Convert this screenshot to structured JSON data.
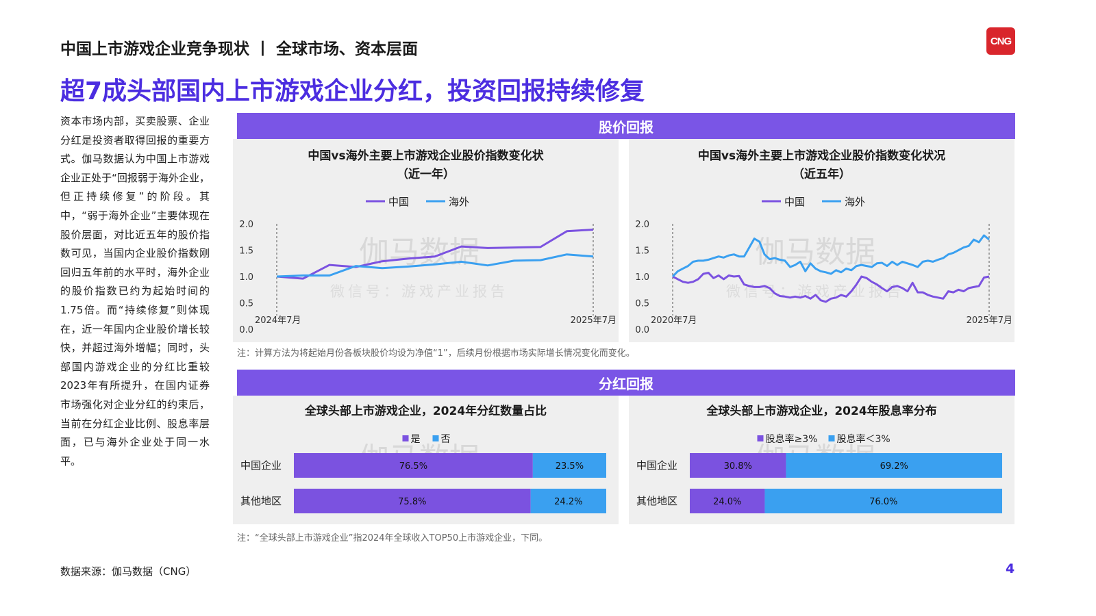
{
  "header": {
    "title": "中国上市游戏企业竞争现状 丨 全球市场、资本层面",
    "logo_text": "CNG"
  },
  "main_title": "超7成头部国内上市游戏企业分红，投资回报持续修复",
  "left_text": "资本市场内部，买卖股票、企业分红是投资者取得回报的重要方式。伽马数据认为中国上市游戏企业正处于“回报弱于海外企业，但正持续修复”的阶段。其中，“弱于海外企业”主要体现在股价层面，对比近五年的股价指数可见，当国内企业股价指数刚回归五年前的水平时，海外企业的股价指数已约为起始时间的1.75倍。而“持续修复”则体现在，近一年国内企业股价增长较快，并超过海外增幅；同时，头部国内游戏企业的分红比重较2023年有所提升，在国内证券市场强化对企业分红的约束后，当前在分红企业比例、股息率层面，已与海外企业处于同一水平。",
  "section1": {
    "label": "股价回报"
  },
  "section2": {
    "label": "分红回报"
  },
  "note1": "注：计算方法为将起始月份各板块股价均设为净值“1”，后续月份根据市场实际增长情况变化而变化。",
  "note2": "注：“全球头部上市游戏企业”指2024年全球收入TOP50上市游戏企业，下同。",
  "watermark": {
    "main": "伽马数据",
    "sub": "微信号：游戏产业报告"
  },
  "footer": {
    "source": "数据来源：伽马数据（CNG）",
    "page": "4"
  },
  "colors": {
    "china": "#7b52e0",
    "overseas": "#3aa0f0",
    "accent": "#4b2de0",
    "section_bar": "#7a55e6"
  },
  "chart_data": [
    {
      "type": "line",
      "title_line1": "中国vs海外主要上市游戏企业股价指数变化状",
      "title_line2": "（近一年）",
      "x_start_label": "2024年7月",
      "x_end_label": "2025年7月",
      "ylim": [
        0,
        2.0
      ],
      "yticks": [
        "0.0",
        "0.5",
        "1.0",
        "1.5",
        "2.0"
      ],
      "series": [
        {
          "name": "中国",
          "color": "#7b52e0",
          "values": [
            1.0,
            0.96,
            1.22,
            1.18,
            1.29,
            1.34,
            1.38,
            1.57,
            1.54,
            1.55,
            1.56,
            1.86,
            1.89
          ]
        },
        {
          "name": "海外",
          "color": "#3aa0f0",
          "values": [
            1.0,
            1.02,
            1.02,
            1.2,
            1.16,
            1.19,
            1.23,
            1.28,
            1.21,
            1.3,
            1.31,
            1.42,
            1.38
          ]
        }
      ]
    },
    {
      "type": "line",
      "title_line1": "中国vs海外主要上市游戏企业股价指数变化状况",
      "title_line2": "（近五年）",
      "x_start_label": "2020年7月",
      "x_end_label": "2025年7月",
      "ylim": [
        0,
        2.0
      ],
      "yticks": [
        "0.0",
        "0.5",
        "1.0",
        "1.5",
        "2.0"
      ],
      "series": [
        {
          "name": "中国",
          "color": "#7b52e0",
          "values": [
            1.0,
            0.95,
            0.9,
            0.88,
            0.9,
            0.95,
            1.05,
            1.07,
            0.97,
            1.02,
            0.95,
            1.02,
            1.0,
            1.01,
            0.85,
            0.82,
            0.8,
            0.8,
            0.82,
            0.78,
            0.68,
            0.63,
            0.62,
            0.6,
            0.62,
            0.6,
            0.63,
            0.58,
            0.65,
            0.55,
            0.52,
            0.58,
            0.6,
            0.65,
            0.62,
            0.72,
            0.85,
            1.0,
            0.97,
            0.9,
            0.85,
            0.78,
            0.72,
            0.8,
            0.82,
            0.78,
            0.72,
            0.88,
            0.7,
            0.7,
            0.65,
            0.62,
            0.6,
            0.58,
            0.72,
            0.7,
            0.75,
            0.72,
            0.78,
            0.8,
            0.82,
            0.98,
            1.0
          ]
        },
        {
          "name": "海外",
          "color": "#3aa0f0",
          "values": [
            1.0,
            1.1,
            1.15,
            1.2,
            1.28,
            1.3,
            1.3,
            1.32,
            1.35,
            1.38,
            1.36,
            1.4,
            1.42,
            1.38,
            1.38,
            1.55,
            1.72,
            1.66,
            1.42,
            1.33,
            1.35,
            1.32,
            1.3,
            1.18,
            1.22,
            1.28,
            1.1,
            1.25,
            1.15,
            1.1,
            1.08,
            1.05,
            1.12,
            1.08,
            1.15,
            1.12,
            1.2,
            1.22,
            1.2,
            1.18,
            1.25,
            1.26,
            1.2,
            1.28,
            1.22,
            1.28,
            1.25,
            1.22,
            1.18,
            1.28,
            1.3,
            1.28,
            1.32,
            1.35,
            1.42,
            1.45,
            1.5,
            1.55,
            1.58,
            1.7,
            1.65,
            1.78,
            1.7
          ]
        }
      ]
    },
    {
      "type": "bar",
      "orientation": "horizontal-stacked-100",
      "title": "全球头部上市游戏企业，2024年分红数量占比",
      "categories": [
        "中国企业",
        "其他地区"
      ],
      "series": [
        {
          "name": "是",
          "color": "#7b52e0",
          "values": [
            76.5,
            75.8
          ],
          "labels": [
            "76.5%",
            "75.8%"
          ]
        },
        {
          "name": "否",
          "color": "#3aa0f0",
          "values": [
            23.5,
            24.2
          ],
          "labels": [
            "23.5%",
            "24.2%"
          ]
        }
      ]
    },
    {
      "type": "bar",
      "orientation": "horizontal-stacked-100",
      "title": "全球头部上市游戏企业，2024年股息率分布",
      "categories": [
        "中国企业",
        "其他地区"
      ],
      "series": [
        {
          "name": "股息率≥3%",
          "color": "#7b52e0",
          "values": [
            30.8,
            24.0
          ],
          "labels": [
            "30.8%",
            "24.0%"
          ]
        },
        {
          "name": "股息率＜3%",
          "color": "#3aa0f0",
          "values": [
            69.2,
            76.0
          ],
          "labels": [
            "69.2%",
            "76.0%"
          ]
        }
      ]
    }
  ]
}
